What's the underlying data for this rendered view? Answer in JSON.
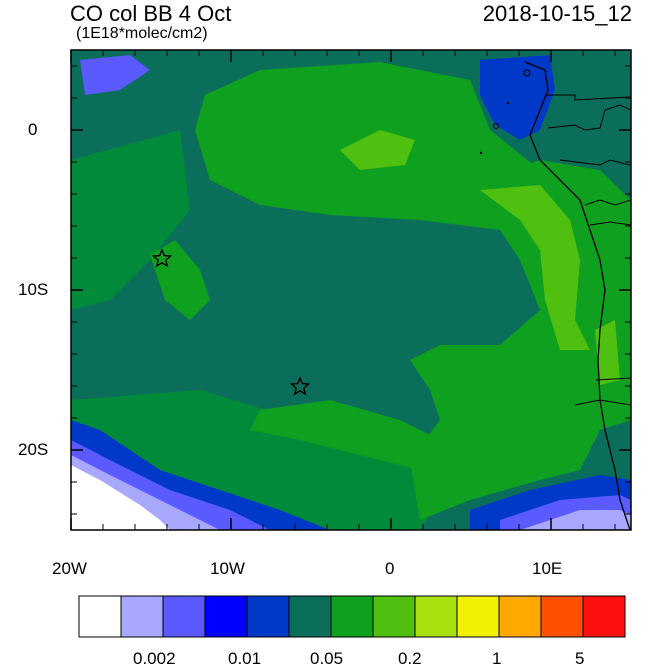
{
  "header": {
    "title": "CO col BB 4 Oct",
    "units": "(1E18*molec/cm2)",
    "date": "2018-10-15_12"
  },
  "map": {
    "lon_labels": [
      "20W",
      "10W",
      "0",
      "10E"
    ],
    "lat_labels": [
      "0",
      "10S",
      "20S"
    ],
    "lon_range": [
      -20,
      15
    ],
    "lat_range": [
      -25,
      5
    ],
    "markers": [
      {
        "name": "star",
        "lon": -14.5,
        "lat": -8
      },
      {
        "name": "star",
        "lon": -5.8,
        "lat": -16
      }
    ]
  },
  "colorbar": {
    "colors": [
      "#ffffff",
      "#a8a8ff",
      "#5a5aff",
      "#0000ff",
      "#0038c8",
      "#0a6e5a",
      "#10a020",
      "#50c010",
      "#a8e010",
      "#f0f000",
      "#ffa800",
      "#ff5000",
      "#ff1010"
    ],
    "labels": [
      "0.002",
      "0.01",
      "0.05",
      "0.2",
      "1",
      "5"
    ]
  },
  "colors": {
    "ocean_base": "#0a6e5a",
    "high": "#10a020",
    "higher": "#50c010",
    "low": "#008a3a",
    "blue": "#0038c8",
    "lightblue": "#a8a8ff",
    "midblue": "#5a5aff"
  }
}
